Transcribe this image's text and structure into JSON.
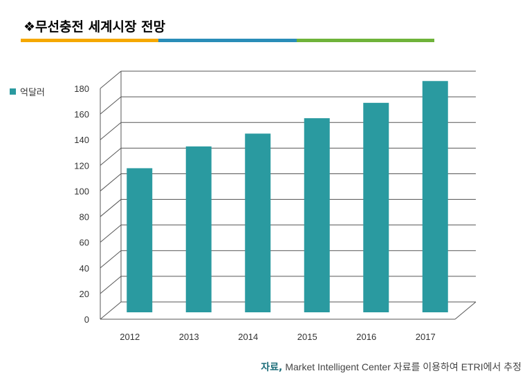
{
  "header": {
    "title": "❖무선충전 세계시장 전망",
    "bar_colors": [
      "#f5a800",
      "#2a8db8",
      "#6fb33a"
    ]
  },
  "legend": {
    "label": "억달러"
  },
  "source": {
    "prefix": "자료,",
    "text": "Market Intelligent Center 자료를 이용하여 ETRI에서 추정"
  },
  "colors": {
    "bar": "#2a9aa0",
    "grid": "#555555"
  },
  "chart_data": {
    "type": "bar",
    "categories": [
      "2012",
      "2013",
      "2014",
      "2015",
      "2016",
      "2017"
    ],
    "series": [
      {
        "name": "억달러",
        "values": [
          107,
          124,
          134,
          146,
          158,
          175
        ]
      }
    ],
    "ylim": [
      0,
      180
    ],
    "yticks": [
      0,
      20,
      40,
      60,
      80,
      100,
      120,
      140,
      160,
      180
    ],
    "grid": true,
    "legend_position": "top-left",
    "style": "3d-floor"
  }
}
